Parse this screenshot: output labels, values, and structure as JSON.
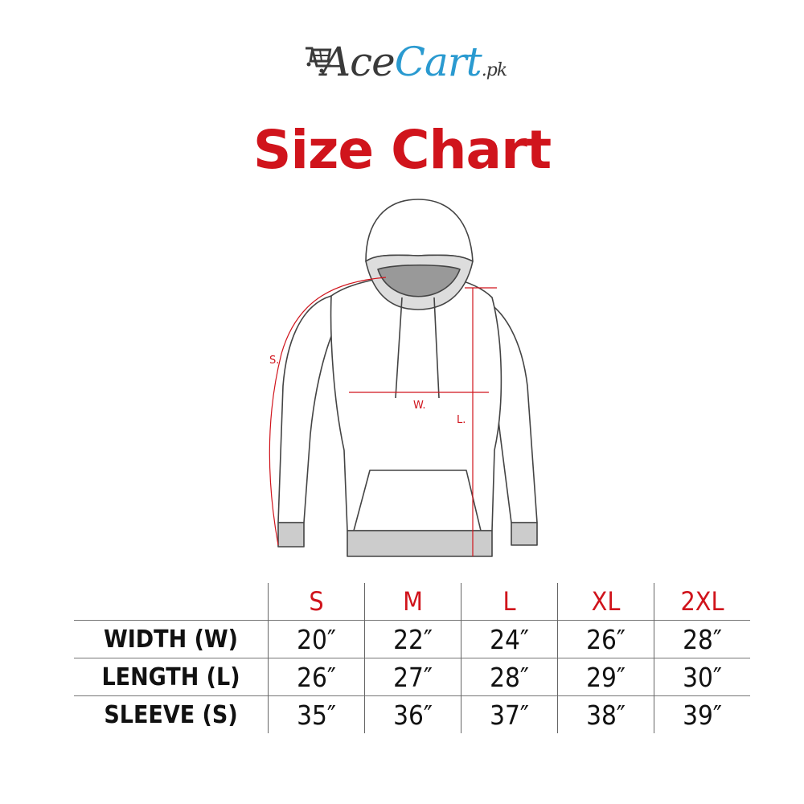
{
  "logo": {
    "part1": "Ace",
    "part2": "Cart",
    "suffix": ".pk",
    "colors": {
      "dark": "#3a3a3a",
      "blue": "#2a9ad0"
    },
    "icon": "shopping-cart-icon"
  },
  "title": "Size Chart",
  "diagram": {
    "labels": {
      "sleeve": "S.",
      "width": "W.",
      "length": "L."
    }
  },
  "table": {
    "sizes": [
      "S",
      "M",
      "L",
      "XL",
      "2XL"
    ],
    "rows": [
      {
        "label": "WIDTH (W)",
        "values": [
          "20″",
          "22″",
          "24″",
          "26″",
          "28″"
        ]
      },
      {
        "label": "LENGTH (L)",
        "values": [
          "26″",
          "27″",
          "28″",
          "29″",
          "30″"
        ]
      },
      {
        "label": "SLEEVE (S)",
        "values": [
          "35″",
          "36″",
          "37″",
          "38″",
          "39″"
        ]
      }
    ]
  },
  "colors": {
    "accent": "#d0141c"
  }
}
